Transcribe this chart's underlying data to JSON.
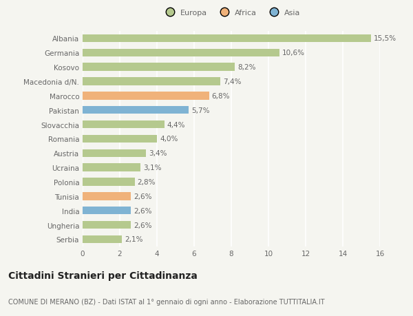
{
  "categories": [
    "Albania",
    "Germania",
    "Kosovo",
    "Macedonia d/N.",
    "Marocco",
    "Pakistan",
    "Slovacchia",
    "Romania",
    "Austria",
    "Ucraina",
    "Polonia",
    "Tunisia",
    "India",
    "Ungheria",
    "Serbia"
  ],
  "values": [
    15.5,
    10.6,
    8.2,
    7.4,
    6.8,
    5.7,
    4.4,
    4.0,
    3.4,
    3.1,
    2.8,
    2.6,
    2.6,
    2.6,
    2.1
  ],
  "labels": [
    "15,5%",
    "10,6%",
    "8,2%",
    "7,4%",
    "6,8%",
    "5,7%",
    "4,4%",
    "4,0%",
    "3,4%",
    "3,1%",
    "2,8%",
    "2,6%",
    "2,6%",
    "2,6%",
    "2,1%"
  ],
  "continent": [
    "Europa",
    "Europa",
    "Europa",
    "Europa",
    "Africa",
    "Asia",
    "Europa",
    "Europa",
    "Europa",
    "Europa",
    "Europa",
    "Africa",
    "Asia",
    "Europa",
    "Europa"
  ],
  "colors": {
    "Europa": "#b5c98e",
    "Africa": "#f0b27a",
    "Asia": "#7fb3d3"
  },
  "legend_labels": [
    "Europa",
    "Africa",
    "Asia"
  ],
  "legend_colors": [
    "#b5c98e",
    "#f0b27a",
    "#7fb3d3"
  ],
  "xlim": [
    0,
    16
  ],
  "xticks": [
    0,
    2,
    4,
    6,
    8,
    10,
    12,
    14,
    16
  ],
  "title": "Cittadini Stranieri per Cittadinanza",
  "subtitle": "COMUNE DI MERANO (BZ) - Dati ISTAT al 1° gennaio di ogni anno - Elaborazione TUTTITALIA.IT",
  "background_color": "#f5f5f0",
  "bar_height": 0.55,
  "label_fontsize": 7.5,
  "tick_fontsize": 7.5,
  "title_fontsize": 10,
  "subtitle_fontsize": 7
}
